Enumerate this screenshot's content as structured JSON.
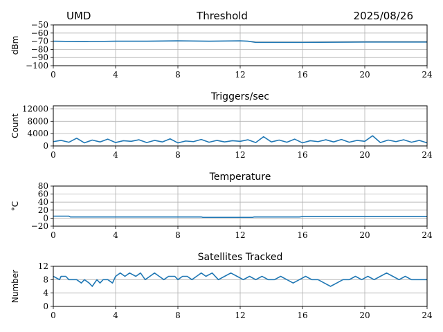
{
  "header": {
    "left": "UMD",
    "center": "Threshold",
    "right": "2025/08/26"
  },
  "colors": {
    "line": "#1f77b4",
    "grid": "#b0b0b0",
    "frame": "#000000"
  },
  "chart_data": [
    {
      "type": "line",
      "title": "",
      "ylabel": "dBm",
      "xlim": [
        0,
        24
      ],
      "ylim": [
        -100,
        -50
      ],
      "xticks": [
        "0",
        "4",
        "8",
        "12",
        "16",
        "20",
        "24"
      ],
      "yticks": [
        "−50",
        "−60",
        "−70",
        "−80",
        "−90",
        "−100"
      ],
      "grid": true,
      "series": [
        {
          "x": [
            0,
            2,
            4,
            6,
            8,
            10,
            12,
            12.5,
            13,
            16,
            20,
            24
          ],
          "y": [
            -70,
            -70.5,
            -70,
            -70,
            -69.5,
            -70,
            -69.5,
            -70,
            -71.5,
            -71.5,
            -71,
            -71
          ]
        }
      ]
    },
    {
      "type": "line",
      "title": "Triggers/sec",
      "ylabel": "Count",
      "xlim": [
        0,
        24
      ],
      "ylim": [
        0,
        13000
      ],
      "xticks": [
        "0",
        "4",
        "8",
        "12",
        "16",
        "20",
        "24"
      ],
      "yticks": [
        "12000",
        "8000",
        "4000",
        "0"
      ],
      "grid": true,
      "series": [
        {
          "x": [
            0,
            0.5,
            1,
            1.5,
            2,
            2.5,
            3,
            3.5,
            4,
            4.5,
            5,
            5.5,
            6,
            6.5,
            7,
            7.5,
            8,
            8.5,
            9,
            9.5,
            10,
            10.5,
            11,
            11.5,
            12,
            12.5,
            13,
            13.5,
            14,
            14.5,
            15,
            15.5,
            16,
            16.5,
            17,
            17.5,
            18,
            18.5,
            19,
            19.5,
            20,
            20.5,
            21,
            21.5,
            22,
            22.5,
            23,
            23.5,
            24
          ],
          "y": [
            1400,
            1800,
            1200,
            2500,
            1000,
            1900,
            1300,
            2200,
            1100,
            1700,
            1500,
            2000,
            1100,
            1800,
            1300,
            2300,
            1000,
            1600,
            1400,
            2100,
            1200,
            1800,
            1300,
            1700,
            1500,
            2000,
            1100,
            3000,
            1300,
            1900,
            1200,
            2200,
            1000,
            1700,
            1400,
            2000,
            1300,
            2100,
            1200,
            1800,
            1500,
            3300,
            1100,
            1900,
            1400,
            2000,
            1200,
            1800,
            1000
          ]
        }
      ]
    },
    {
      "type": "line",
      "title": "Temperature",
      "ylabel": "°C",
      "xlim": [
        0,
        24
      ],
      "ylim": [
        -20,
        80
      ],
      "xticks": [
        "0",
        "4",
        "8",
        "12",
        "16",
        "20",
        "24"
      ],
      "yticks": [
        "80",
        "60",
        "40",
        "20",
        "0",
        "−20"
      ],
      "grid": true,
      "series": [
        {
          "x": [
            0,
            1,
            1.1,
            9.5,
            9.6,
            12.8,
            12.9,
            15.8,
            16,
            24
          ],
          "y": [
            5,
            5,
            3,
            3,
            2,
            2,
            3,
            3,
            4,
            4
          ]
        }
      ]
    },
    {
      "type": "line",
      "title": "Satellites Tracked",
      "ylabel": "Number",
      "xlim": [
        0,
        24
      ],
      "ylim": [
        0,
        12
      ],
      "xticks": [
        "0",
        "4",
        "8",
        "12",
        "16",
        "20",
        "24"
      ],
      "yticks": [
        "12",
        "8",
        "4",
        "0"
      ],
      "grid": true,
      "series": [
        {
          "x": [
            0,
            0.4,
            0.5,
            0.8,
            1.0,
            1.5,
            1.8,
            2.0,
            2.3,
            2.5,
            2.8,
            3.0,
            3.2,
            3.5,
            3.8,
            4.0,
            4.3,
            4.6,
            4.9,
            5.3,
            5.6,
            5.9,
            6.2,
            6.5,
            6.8,
            7.1,
            7.4,
            7.8,
            8.0,
            8.3,
            8.6,
            8.9,
            9.2,
            9.5,
            9.8,
            10.2,
            10.6,
            11.0,
            11.4,
            11.8,
            12.2,
            12.6,
            13.0,
            13.4,
            13.8,
            14.2,
            14.6,
            15.0,
            15.4,
            15.8,
            16.2,
            16.6,
            17.0,
            17.4,
            17.8,
            18.2,
            18.6,
            19.0,
            19.4,
            19.8,
            20.2,
            20.6,
            21.0,
            21.4,
            21.8,
            22.2,
            22.6,
            23.0,
            23.4,
            24
          ],
          "y": [
            9,
            8,
            9,
            9,
            8,
            8,
            7,
            8,
            7,
            6,
            8,
            7,
            8,
            8,
            7,
            9,
            10,
            9,
            10,
            9,
            10,
            8,
            9,
            10,
            9,
            8,
            9,
            9,
            8,
            9,
            9,
            8,
            9,
            10,
            9,
            10,
            8,
            9,
            10,
            9,
            8,
            9,
            8,
            9,
            8,
            8,
            9,
            8,
            7,
            8,
            9,
            8,
            8,
            7,
            6,
            7,
            8,
            8,
            9,
            8,
            9,
            8,
            9,
            10,
            9,
            8,
            9,
            8,
            8,
            8
          ]
        }
      ]
    }
  ]
}
